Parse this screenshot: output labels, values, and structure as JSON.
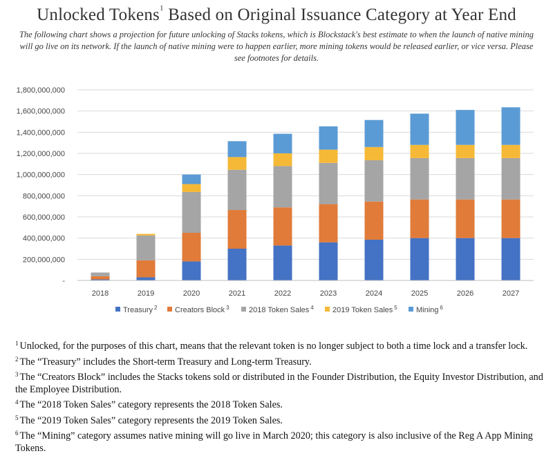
{
  "title": "Unlocked Tokens",
  "title_sup": "1",
  "title_rest": " Based on Original Issuance Category at Year End",
  "subtitle": "The following chart shows a projection for future unlocking of Stacks tokens, which is Blockstack's best estimate to when the launch of native mining will go live on its network. If the launch of native mining were to happen earlier, more mining tokens would be released earlier, or vice versa. Please see footnotes for details.",
  "chart_data": {
    "type": "bar",
    "stacked": true,
    "categories": [
      "2018",
      "2019",
      "2020",
      "2021",
      "2022",
      "2023",
      "2024",
      "2025",
      "2026",
      "2027"
    ],
    "ylim": [
      0,
      1800000000
    ],
    "yticks": [
      "-",
      "200,000,000",
      "400,000,000",
      "600,000,000",
      "800,000,000",
      "1,000,000,000",
      "1,200,000,000",
      "1,400,000,000",
      "1,600,000,000",
      "1,800,000,000"
    ],
    "grid": true,
    "legend_position": "bottom",
    "series": [
      {
        "name": "Treasury",
        "sup": "2",
        "color": "#4472C4",
        "values": [
          10000000,
          30000000,
          180000000,
          300000000,
          330000000,
          360000000,
          385000000,
          400000000,
          400000000,
          400000000
        ]
      },
      {
        "name": "Creators Block",
        "sup": "3",
        "color": "#E07B39",
        "values": [
          30000000,
          160000000,
          270000000,
          365000000,
          360000000,
          360000000,
          360000000,
          365000000,
          365000000,
          365000000
        ]
      },
      {
        "name": "2018 Token Sales",
        "sup": "4",
        "color": "#A5A5A5",
        "values": [
          35000000,
          235000000,
          385000000,
          380000000,
          390000000,
          390000000,
          390000000,
          390000000,
          390000000,
          390000000
        ]
      },
      {
        "name": "2019 Token Sales",
        "sup": "5",
        "color": "#F5B937",
        "values": [
          0,
          15000000,
          75000000,
          120000000,
          120000000,
          125000000,
          125000000,
          125000000,
          125000000,
          125000000
        ]
      },
      {
        "name": "Mining",
        "sup": "6",
        "color": "#5B9BD5",
        "values": [
          0,
          0,
          90000000,
          150000000,
          185000000,
          220000000,
          255000000,
          295000000,
          330000000,
          355000000
        ]
      }
    ]
  },
  "footnotes": [
    {
      "num": "1",
      "text": "Unlocked, for the purposes of this chart, means that the relevant token is no longer subject to both a time lock and a transfer lock."
    },
    {
      "num": "2",
      "text": "The “Treasury” includes the Short-term Treasury and Long-term Treasury."
    },
    {
      "num": "3",
      "text": "The “Creators Block” includes the Stacks tokens sold or distributed in the Founder Distribution, the Equity Investor Distribution, and the Employee Distribution."
    },
    {
      "num": "4",
      "text": "The “2018 Token Sales” category represents the 2018 Token Sales."
    },
    {
      "num": "5",
      "text": "The “2019 Token Sales” category represents the 2019 Token Sales."
    },
    {
      "num": "6",
      "text": "The “Mining” category assumes native mining will go live in March 2020; this category is also inclusive of the Reg A App Mining Tokens."
    }
  ]
}
